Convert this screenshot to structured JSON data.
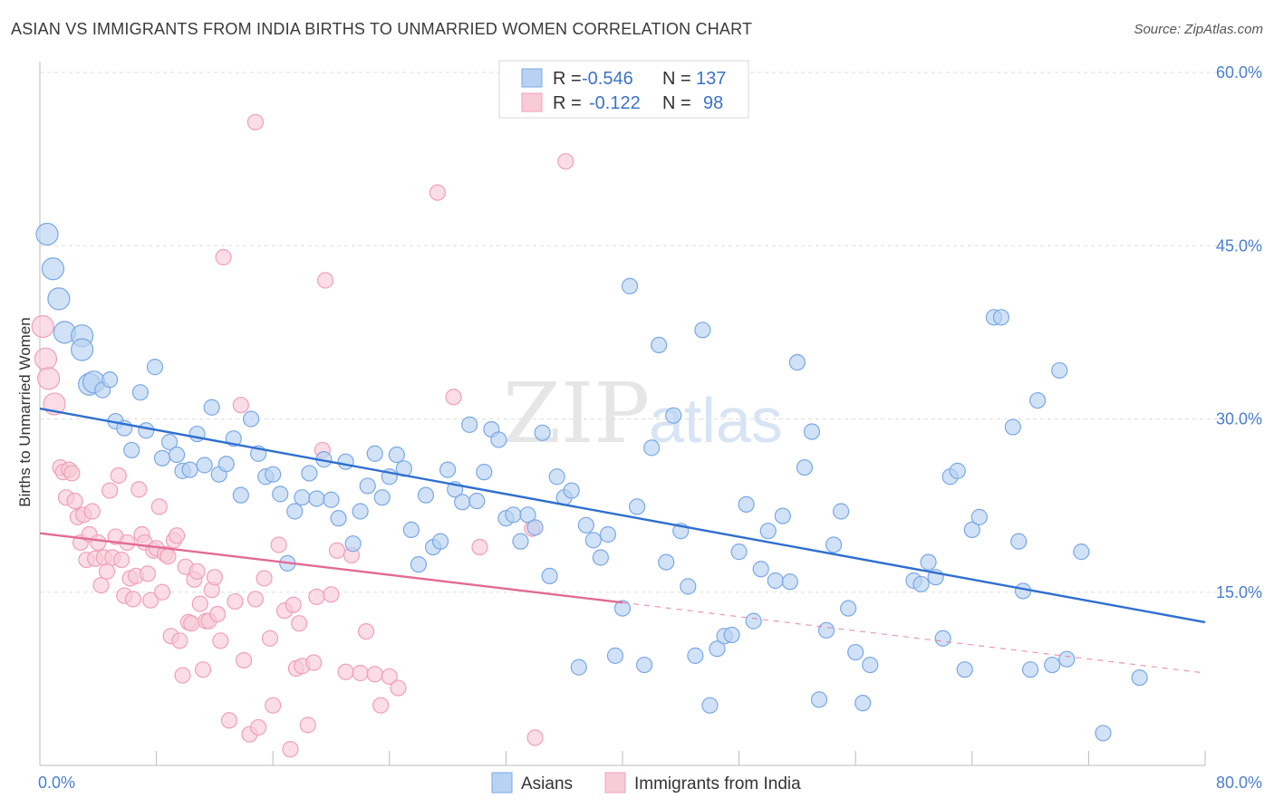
{
  "title": "ASIAN VS IMMIGRANTS FROM INDIA BIRTHS TO UNMARRIED WOMEN CORRELATION CHART",
  "source": "Source: ZipAtlas.com",
  "watermark": {
    "zip": "ZIP",
    "atlas": "atlas"
  },
  "chart_data": {
    "type": "scatter",
    "ylabel": "Births to Unmarried Women",
    "xlim": [
      0,
      80
    ],
    "ylim": [
      0,
      60
    ],
    "x_ticks": [
      0,
      8,
      16,
      24,
      32,
      40,
      48,
      56,
      64,
      72,
      80
    ],
    "x_tick_labels": [
      "0.0%",
      "",
      "",
      "",
      "",
      "",
      "",
      "",
      "",
      "",
      "80.0%"
    ],
    "y_ticks": [
      15,
      30,
      45,
      60
    ],
    "y_tick_labels": [
      "15.0%",
      "30.0%",
      "45.0%",
      "60.0%"
    ],
    "grid": true,
    "legend_top": [
      {
        "r_label": "R =",
        "r_value": "-0.546",
        "n_label": "N =",
        "n_value": "137"
      },
      {
        "r_label": "R =",
        "r_value": "-0.122",
        "n_label": "N =",
        "n_value": "98"
      }
    ],
    "series": [
      {
        "name": "Asians",
        "color": "#7aa8e6",
        "fill": "#b8d2f3",
        "line_color": "#2f6fd0",
        "trend": {
          "x0": 0,
          "y0": 30.9,
          "x1": 80,
          "y1": 12.4
        },
        "points": [
          [
            0.5,
            46
          ],
          [
            0.9,
            43
          ],
          [
            1.3,
            40.4
          ],
          [
            1.7,
            37.5
          ],
          [
            2.9,
            37.2
          ],
          [
            2.9,
            36
          ],
          [
            3.4,
            33
          ],
          [
            3.7,
            33.2
          ],
          [
            4.3,
            32.5
          ],
          [
            4.8,
            33.4
          ],
          [
            5.2,
            29.8
          ],
          [
            5.8,
            29.2
          ],
          [
            6.3,
            27.3
          ],
          [
            6.9,
            32.3
          ],
          [
            7.3,
            29
          ],
          [
            7.9,
            34.5
          ],
          [
            8.4,
            26.6
          ],
          [
            8.9,
            28
          ],
          [
            9.4,
            26.9
          ],
          [
            9.8,
            25.5
          ],
          [
            10.3,
            25.6
          ],
          [
            10.8,
            28.7
          ],
          [
            11.3,
            26
          ],
          [
            11.8,
            31
          ],
          [
            12.3,
            25.2
          ],
          [
            12.8,
            26.1
          ],
          [
            13.3,
            28.3
          ],
          [
            13.8,
            23.4
          ],
          [
            14.5,
            30
          ],
          [
            15,
            27
          ],
          [
            15.5,
            25
          ],
          [
            16,
            25.2
          ],
          [
            16.5,
            23.5
          ],
          [
            17,
            17.5
          ],
          [
            17.5,
            22
          ],
          [
            18,
            23.2
          ],
          [
            18.5,
            25.3
          ],
          [
            19,
            23.1
          ],
          [
            19.5,
            26.5
          ],
          [
            20,
            23
          ],
          [
            20.5,
            21.4
          ],
          [
            21,
            26.3
          ],
          [
            21.5,
            19.2
          ],
          [
            22,
            22
          ],
          [
            22.5,
            24.2
          ],
          [
            23,
            27
          ],
          [
            23.5,
            23.2
          ],
          [
            24,
            25
          ],
          [
            24.5,
            26.9
          ],
          [
            25,
            25.7
          ],
          [
            25.5,
            20.4
          ],
          [
            26,
            17.4
          ],
          [
            26.5,
            23.4
          ],
          [
            27,
            18.9
          ],
          [
            27.5,
            19.4
          ],
          [
            28,
            25.6
          ],
          [
            28.5,
            23.9
          ],
          [
            29,
            22.8
          ],
          [
            29.5,
            29.5
          ],
          [
            30,
            22.9
          ],
          [
            30.5,
            25.4
          ],
          [
            31,
            29.1
          ],
          [
            31.5,
            28.2
          ],
          [
            32,
            21.4
          ],
          [
            32.5,
            21.7
          ],
          [
            33,
            19.4
          ],
          [
            33.5,
            21.7
          ],
          [
            34,
            20.6
          ],
          [
            34.5,
            28.8
          ],
          [
            35,
            16.4
          ],
          [
            35.5,
            25
          ],
          [
            36,
            23.2
          ],
          [
            36.5,
            23.8
          ],
          [
            37,
            8.5
          ],
          [
            37.5,
            20.8
          ],
          [
            38,
            19.5
          ],
          [
            38.5,
            18
          ],
          [
            39,
            20
          ],
          [
            39.5,
            9.5
          ],
          [
            40,
            13.6
          ],
          [
            40.5,
            41.5
          ],
          [
            41,
            22.4
          ],
          [
            41.5,
            8.7
          ],
          [
            42,
            27.5
          ],
          [
            42.5,
            36.4
          ],
          [
            43,
            17.6
          ],
          [
            43.5,
            30.3
          ],
          [
            44,
            20.3
          ],
          [
            44.5,
            15.5
          ],
          [
            45,
            9.5
          ],
          [
            45.5,
            37.7
          ],
          [
            46,
            5.2
          ],
          [
            46.5,
            10.1
          ],
          [
            47,
            11.2
          ],
          [
            47.5,
            11.3
          ],
          [
            48,
            18.5
          ],
          [
            48.5,
            22.6
          ],
          [
            49,
            12.5
          ],
          [
            49.5,
            17
          ],
          [
            50,
            20.3
          ],
          [
            50.5,
            16
          ],
          [
            51,
            21.6
          ],
          [
            51.5,
            15.9
          ],
          [
            52,
            34.9
          ],
          [
            52.5,
            25.8
          ],
          [
            53,
            28.9
          ],
          [
            53.5,
            5.7
          ],
          [
            54,
            11.7
          ],
          [
            54.5,
            19.1
          ],
          [
            55,
            22
          ],
          [
            55.5,
            13.6
          ],
          [
            56,
            9.8
          ],
          [
            56.5,
            5.4
          ],
          [
            57,
            8.7
          ],
          [
            60,
            16
          ],
          [
            60.5,
            15.7
          ],
          [
            61,
            17.6
          ],
          [
            61.5,
            16.3
          ],
          [
            62,
            11
          ],
          [
            62.5,
            25
          ],
          [
            63,
            25.5
          ],
          [
            63.5,
            8.3
          ],
          [
            64,
            20.4
          ],
          [
            64.5,
            21.5
          ],
          [
            65.5,
            38.8
          ],
          [
            66,
            38.8
          ],
          [
            66.8,
            29.3
          ],
          [
            67.2,
            19.4
          ],
          [
            67.5,
            15.1
          ],
          [
            68,
            8.3
          ],
          [
            68.5,
            31.6
          ],
          [
            69.5,
            8.7
          ],
          [
            70,
            34.2
          ],
          [
            70.5,
            9.2
          ],
          [
            71.5,
            18.5
          ],
          [
            73,
            2.8
          ],
          [
            75.5,
            7.6
          ]
        ]
      },
      {
        "name": "Immigrants from India",
        "color": "#f0a0b8",
        "fill": "#f8cbd8",
        "line_color": "#e36a93",
        "trend": {
          "x0": 0,
          "y0": 20.1,
          "x1": 40,
          "y1": 14.1
        },
        "trend_dashed": {
          "x0": 40,
          "y0": 14.1,
          "x1": 80,
          "y1": 8
        },
        "points": [
          [
            0.2,
            38
          ],
          [
            0.4,
            35.2
          ],
          [
            0.6,
            33.5
          ],
          [
            1,
            31.3
          ],
          [
            1.4,
            25.8
          ],
          [
            1.6,
            25.4
          ],
          [
            1.8,
            23.2
          ],
          [
            2,
            25.6
          ],
          [
            2.2,
            25.3
          ],
          [
            2.4,
            22.9
          ],
          [
            2.6,
            21.5
          ],
          [
            2.8,
            19.3
          ],
          [
            3,
            21.7
          ],
          [
            3.2,
            17.8
          ],
          [
            3.4,
            20
          ],
          [
            3.6,
            22
          ],
          [
            3.8,
            17.9
          ],
          [
            4,
            19.3
          ],
          [
            4.2,
            15.6
          ],
          [
            4.4,
            18
          ],
          [
            4.6,
            16.8
          ],
          [
            4.8,
            23.8
          ],
          [
            5,
            18
          ],
          [
            5.2,
            19.8
          ],
          [
            5.4,
            25.1
          ],
          [
            5.6,
            17.8
          ],
          [
            5.8,
            14.7
          ],
          [
            6,
            19.3
          ],
          [
            6.2,
            16.2
          ],
          [
            6.4,
            14.4
          ],
          [
            6.6,
            16.4
          ],
          [
            6.8,
            23.9
          ],
          [
            7,
            20
          ],
          [
            7.2,
            19.3
          ],
          [
            7.4,
            16.6
          ],
          [
            7.6,
            14.3
          ],
          [
            7.8,
            18.6
          ],
          [
            8,
            18.8
          ],
          [
            8.2,
            22.4
          ],
          [
            8.4,
            15
          ],
          [
            8.6,
            18.3
          ],
          [
            8.8,
            18.1
          ],
          [
            9,
            11.2
          ],
          [
            9.2,
            19.5
          ],
          [
            9.4,
            19.9
          ],
          [
            9.6,
            10.8
          ],
          [
            9.8,
            7.8
          ],
          [
            10,
            17.2
          ],
          [
            10.2,
            12.4
          ],
          [
            10.4,
            12.3
          ],
          [
            10.6,
            16.1
          ],
          [
            10.8,
            16.8
          ],
          [
            11,
            14
          ],
          [
            11.2,
            8.3
          ],
          [
            11.4,
            12.5
          ],
          [
            11.6,
            12.5
          ],
          [
            11.8,
            15.2
          ],
          [
            12,
            16.3
          ],
          [
            12.2,
            13.1
          ],
          [
            12.4,
            10.8
          ],
          [
            12.6,
            44
          ],
          [
            13,
            3.9
          ],
          [
            13.4,
            14.2
          ],
          [
            13.8,
            31.2
          ],
          [
            14,
            9.1
          ],
          [
            14.4,
            2.7
          ],
          [
            14.8,
            14.4
          ],
          [
            15,
            3.3
          ],
          [
            15.4,
            16.2
          ],
          [
            15.8,
            11
          ],
          [
            16,
            5.2
          ],
          [
            16.4,
            19.1
          ],
          [
            16.8,
            13.4
          ],
          [
            17.2,
            1.4
          ],
          [
            17.4,
            13.9
          ],
          [
            17.6,
            8.4
          ],
          [
            17.8,
            12.3
          ],
          [
            18,
            8.6
          ],
          [
            18.4,
            3.5
          ],
          [
            18.8,
            8.9
          ],
          [
            19,
            14.6
          ],
          [
            19.4,
            27.3
          ],
          [
            19.6,
            42
          ],
          [
            20,
            14.8
          ],
          [
            20.4,
            18.6
          ],
          [
            21,
            8.1
          ],
          [
            21.4,
            18.2
          ],
          [
            22,
            8
          ],
          [
            22.4,
            11.6
          ],
          [
            23,
            7.9
          ],
          [
            23.4,
            5.2
          ],
          [
            24,
            7.7
          ],
          [
            24.6,
            6.7
          ],
          [
            14.8,
            55.7
          ],
          [
            27.3,
            49.6
          ],
          [
            28.4,
            31.9
          ],
          [
            30.2,
            18.9
          ],
          [
            33.8,
            20.5
          ],
          [
            34,
            2.4
          ],
          [
            36.1,
            52.3
          ]
        ]
      }
    ]
  },
  "legend_bottom": [
    "Asians",
    "Immigrants from India"
  ]
}
